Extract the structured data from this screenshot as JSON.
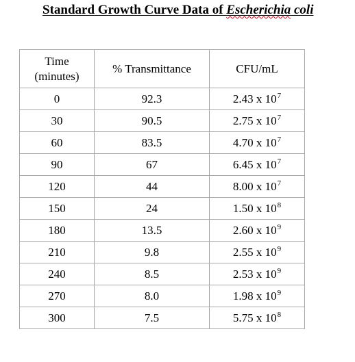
{
  "title": {
    "prefix": "Standard Growth Curve Data of ",
    "organism_part1": "Escherichia",
    "organism_space": " ",
    "organism_part2": "coli"
  },
  "table": {
    "headers": {
      "time_line1": "Time",
      "time_line2": "(minutes)",
      "transmittance": "% Transmittance",
      "cfu": "CFU/mL"
    },
    "rows": [
      {
        "time": "0",
        "transmittance": "92.3",
        "cfu_mantissa": "2.43",
        "cfu_base": "x 10",
        "cfu_exp": "7"
      },
      {
        "time": "30",
        "transmittance": "90.5",
        "cfu_mantissa": "2.75",
        "cfu_base": "x 10",
        "cfu_exp": "7"
      },
      {
        "time": "60",
        "transmittance": "83.5",
        "cfu_mantissa": "4.70",
        "cfu_base": "x 10",
        "cfu_exp": "7"
      },
      {
        "time": "90",
        "transmittance": "67",
        "cfu_mantissa": "6.45",
        "cfu_base": "x 10",
        "cfu_exp": "7"
      },
      {
        "time": "120",
        "transmittance": "44",
        "cfu_mantissa": "8.00",
        "cfu_base": "x 10",
        "cfu_exp": "7"
      },
      {
        "time": "150",
        "transmittance": "24",
        "cfu_mantissa": "1.50",
        "cfu_base": "x 10",
        "cfu_exp": "8"
      },
      {
        "time": "180",
        "transmittance": "13.5",
        "cfu_mantissa": "2.60",
        "cfu_base": "x 10",
        "cfu_exp": "9"
      },
      {
        "time": "210",
        "transmittance": "9.8",
        "cfu_mantissa": "2.55",
        "cfu_base": "x 10",
        "cfu_exp": "9"
      },
      {
        "time": "240",
        "transmittance": "8.5",
        "cfu_mantissa": "2.53",
        "cfu_base": "x 10",
        "cfu_exp": "9"
      },
      {
        "time": "270",
        "transmittance": "8.0",
        "cfu_mantissa": "1.98",
        "cfu_base": "x 10",
        "cfu_exp": "9"
      },
      {
        "time": "300",
        "transmittance": "7.5",
        "cfu_mantissa": "5.75",
        "cfu_base": "x 10",
        "cfu_exp": "8"
      }
    ]
  },
  "colors": {
    "border": "#a6a6a6",
    "text": "#000000",
    "spellcheck_underline": "#d0021b"
  }
}
